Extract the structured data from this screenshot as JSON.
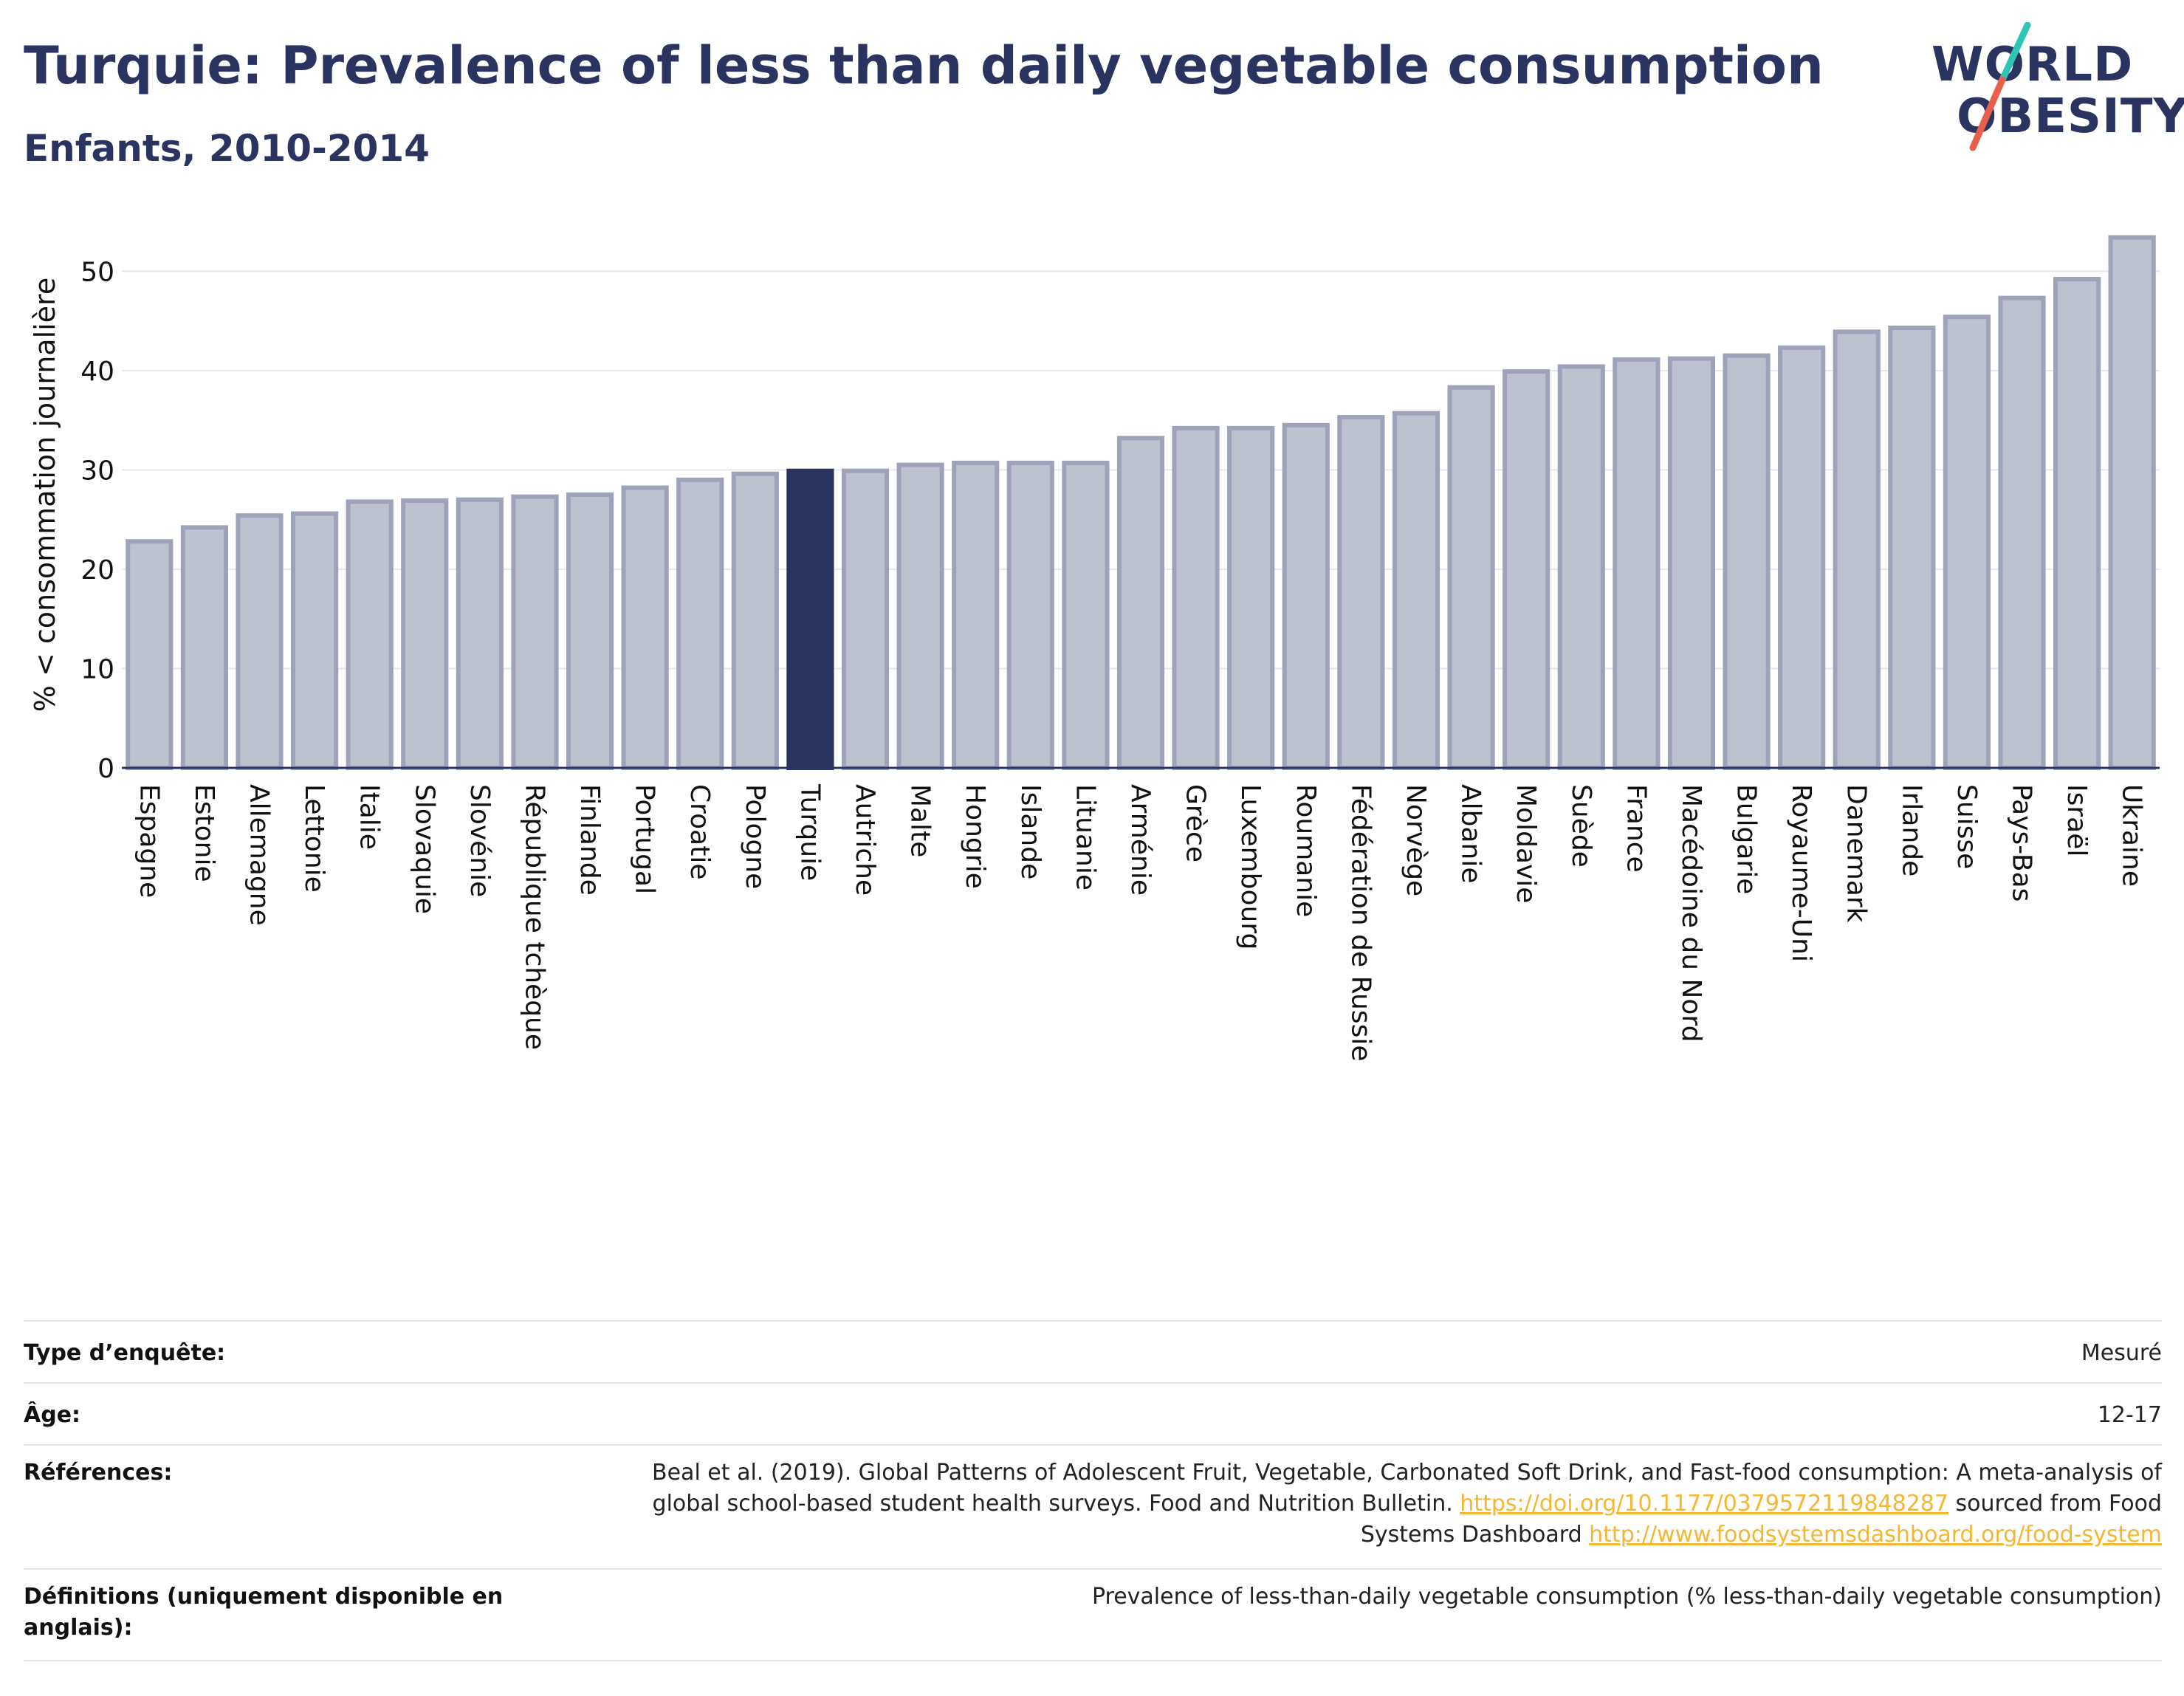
{
  "header": {
    "title": "Turquie: Prevalence of less than daily vegetable consumption",
    "subtitle": "Enfants, 2010-2014"
  },
  "logo": {
    "line1": "WORLD",
    "line2": "OBESITY",
    "colors": {
      "text": "#2b3461",
      "slash_top": "#2ec4b6",
      "slash_bottom": "#e8604c"
    }
  },
  "colors": {
    "bar": "#bec2cf",
    "bar_stroke": "#9ea3ba",
    "highlight": "#2b3461",
    "axis": "#2b3461",
    "grid": "#e6e6eb",
    "link": "#f5b731"
  },
  "chart_data": {
    "type": "bar",
    "ylabel": "% < consommation journalière",
    "ylim": [
      0,
      55
    ],
    "yticks": [
      0,
      10,
      20,
      30,
      40,
      50
    ],
    "grid": true,
    "highlight": "Turquie",
    "categories": [
      "Espagne",
      "Estonie",
      "Allemagne",
      "Lettonie",
      "Italie",
      "Slovaquie",
      "Slovénie",
      "République tchèque",
      "Finlande",
      "Portugal",
      "Croatie",
      "Pologne",
      "Turquie",
      "Autriche",
      "Malte",
      "Hongrie",
      "Islande",
      "Lituanie",
      "Arménie",
      "Grèce",
      "Luxembourg",
      "Roumanie",
      "Fédération de Russie",
      "Norvège",
      "Albanie",
      "Moldavie",
      "Suède",
      "France",
      "Macédoine du Nord",
      "Bulgarie",
      "Royaume-Uni",
      "Danemark",
      "Irlande",
      "Suisse",
      "Pays-Bas",
      "Israël",
      "Ukraine"
    ],
    "values": [
      22.8,
      24.2,
      25.4,
      25.6,
      26.8,
      26.9,
      27.0,
      27.3,
      27.5,
      28.2,
      29.0,
      29.6,
      29.9,
      29.9,
      30.5,
      30.7,
      30.7,
      30.7,
      33.2,
      34.2,
      34.2,
      34.5,
      35.3,
      35.7,
      38.3,
      39.9,
      40.4,
      41.1,
      41.2,
      41.5,
      42.3,
      43.9,
      44.3,
      45.4,
      47.3,
      49.2,
      53.4
    ]
  },
  "footer": {
    "rows": [
      {
        "label": "Type d’enquête:",
        "value": "Mesuré"
      },
      {
        "label": "Âge:",
        "value": "12-17"
      },
      {
        "label": "Références:",
        "value_parts": [
          "Beal et al. (2019). Global Patterns of Adolescent Fruit, Vegetable, Carbonated Soft Drink, and Fast-food consumption: A meta-analysis of global school-based student health surveys. Food and Nutrition Bulletin. ",
          "https://doi.org/10.1177/0379572119848287",
          " sourced from Food Systems Dashboard ",
          "http://www.foodsystemsdashboard.org/food-system"
        ]
      },
      {
        "label": "Définitions (uniquement disponible en anglais):",
        "value": "Prevalence of less-than-daily vegetable consumption (% less-than-daily vegetable consumption)"
      }
    ]
  }
}
